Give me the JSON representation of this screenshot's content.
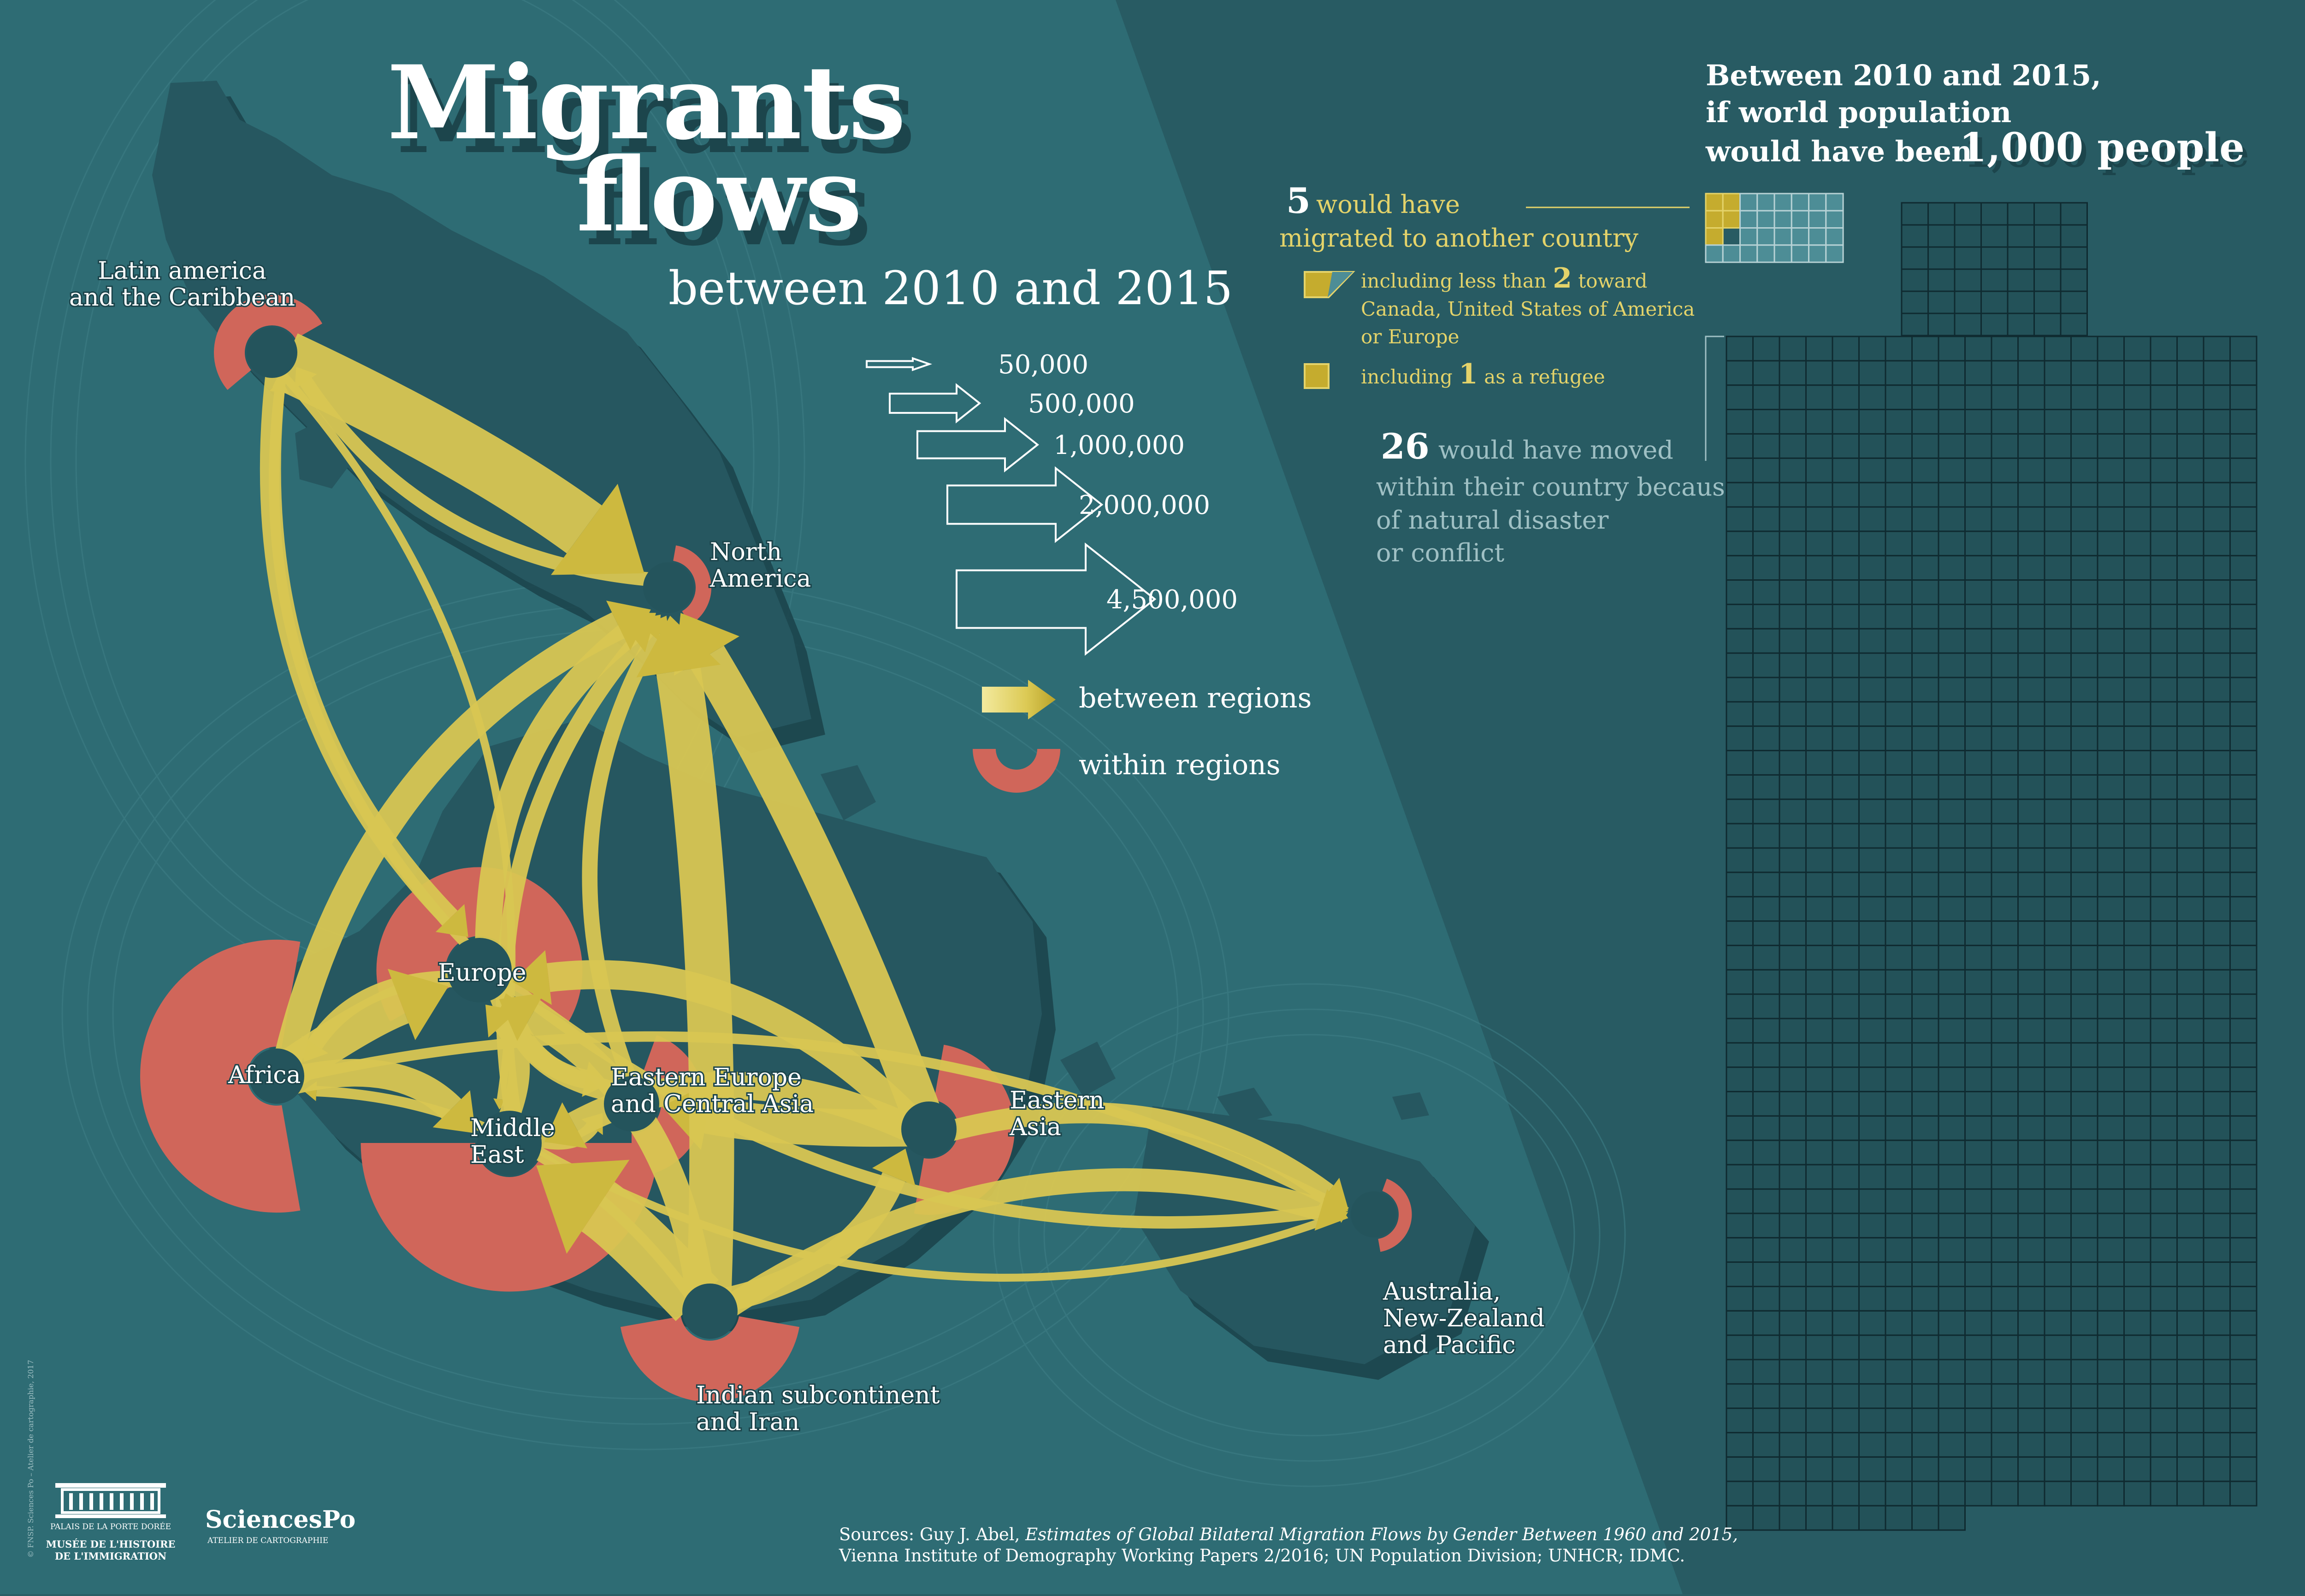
{
  "title": {
    "line1": "Migrants",
    "line2": "flows",
    "subtitle": "between 2010 and 2015"
  },
  "colors": {
    "sea": "#2e6c74",
    "land": "#265760",
    "panel": "#285b63",
    "arrow": "#d8c652",
    "within": "#d0665a",
    "grid_line": "#0f2a30",
    "grid_fill": "#235259",
    "highlight_fill": "#c5ac2e",
    "light_fill": "#4d8d96"
  },
  "regions": [
    {
      "id": "latin",
      "label_lines": [
        "Latin america",
        "and the Caribbean"
      ],
      "within": 1
    },
    {
      "id": "na",
      "label_lines": [
        "North",
        "America"
      ],
      "within": 0.4
    },
    {
      "id": "europe",
      "label_lines": [
        "Europe"
      ],
      "within": 2.5
    },
    {
      "id": "africa",
      "label_lines": [
        "Africa"
      ],
      "within": 4.0
    },
    {
      "id": "me",
      "label_lines": [
        "Middle",
        "East"
      ],
      "within": 4.3
    },
    {
      "id": "eeca",
      "label_lines": [
        "Eastern Europe",
        "and Central Asia"
      ],
      "within": 1.5
    },
    {
      "id": "ea",
      "label_lines": [
        "Eastern",
        "Asia"
      ],
      "within": 2.0
    },
    {
      "id": "india",
      "label_lines": [
        "Indian subcontinent",
        "and Iran"
      ],
      "within": 2.2
    },
    {
      "id": "aus",
      "label_lines": [
        "Australia,",
        "New-Zealand",
        "and Pacific"
      ],
      "within": 0.3
    }
  ],
  "flows": [
    {
      "from": "latin",
      "to": "na",
      "value": 4500000
    },
    {
      "from": "india",
      "to": "me",
      "value": 4500000
    },
    {
      "from": "india",
      "to": "na",
      "value": 2500000
    },
    {
      "from": "ea",
      "to": "na",
      "value": 2000000
    },
    {
      "from": "africa",
      "to": "europe",
      "value": 2000000
    },
    {
      "from": "ea",
      "to": "eeca",
      "value": 1700000
    },
    {
      "from": "india",
      "to": "europe",
      "value": 1000000
    },
    {
      "from": "africa",
      "to": "na",
      "value": 1000000
    },
    {
      "from": "ea",
      "to": "europe",
      "value": 1000000
    },
    {
      "from": "ea",
      "to": "me",
      "value": 900000
    },
    {
      "from": "africa",
      "to": "me",
      "value": 900000
    },
    {
      "from": "europe",
      "to": "na",
      "value": 800000
    },
    {
      "from": "india",
      "to": "ea",
      "value": 700000
    },
    {
      "from": "india",
      "to": "aus",
      "value": 600000
    },
    {
      "from": "ea",
      "to": "aus",
      "value": 500000
    },
    {
      "from": "latin",
      "to": "europe",
      "value": 500000
    },
    {
      "from": "eeca",
      "to": "europe",
      "value": 500000
    },
    {
      "from": "me",
      "to": "europe",
      "value": 500000
    },
    {
      "from": "europe",
      "to": "eeca",
      "value": 400000
    },
    {
      "from": "europe",
      "to": "africa",
      "value": 300000
    },
    {
      "from": "me",
      "to": "na",
      "value": 300000
    },
    {
      "from": "eeca",
      "to": "na",
      "value": 250000
    },
    {
      "from": "europe",
      "to": "aus",
      "value": 150000
    },
    {
      "from": "na",
      "to": "latin",
      "value": 200000
    },
    {
      "from": "africa",
      "to": "aus",
      "value": 100000
    },
    {
      "from": "me",
      "to": "eeca",
      "value": 200000
    },
    {
      "from": "india",
      "to": "africa",
      "value": 100000
    },
    {
      "from": "europe",
      "to": "latin",
      "value": 100000
    },
    {
      "from": "latin",
      "to": "me",
      "value": 50000
    },
    {
      "from": "me",
      "to": "aus",
      "value": 50000
    }
  ],
  "legend": {
    "scale": [
      {
        "value": 50000,
        "label": "50,000"
      },
      {
        "value": 500000,
        "label": "500,000"
      },
      {
        "value": 1000000,
        "label": "1,000,000"
      },
      {
        "value": 2000000,
        "label": "2,000,000"
      },
      {
        "value": 4500000,
        "label": "4,500,000"
      }
    ],
    "between_label": "between regions",
    "within_label": "within regions"
  },
  "population": {
    "heading_line1": "Between 2010 and 2015,",
    "heading_line2": "if world population",
    "heading_line3": "would have been",
    "total": "1,000 people",
    "total_count": 1000,
    "migrated_count": "5",
    "migrated_line1": "would have",
    "migrated_line2": "migrated to another country",
    "toward_prefix": "including less than",
    "toward_count": "2",
    "toward_suffix": "toward",
    "toward_line2": "Canada, United States of America",
    "toward_line3": "or Europe",
    "refugee_prefix": "including",
    "refugee_count": "1",
    "refugee_suffix": "as a refugee",
    "moved_count": "26",
    "moved_line1": "would have moved",
    "moved_line2": "within their country because",
    "moved_line3": "of natural disaster",
    "moved_line4": "or conflict",
    "migrated_squares": 5,
    "displaced_squares": 26
  },
  "sources": {
    "prefix": "Sources: Guy J. Abel,",
    "italic": "Estimates of Global Bilateral Migration Flows by Gender Between 1960 and 2015,",
    "line2": "Vienna Institute of Demography Working Papers 2/2016; UN Population Division; UNHCR; IDMC."
  },
  "logos": {
    "museum_line1": "PALAIS DE LA PORTE DORÉE",
    "museum_line2": "MUSÉE DE L'HISTOIRE",
    "museum_line3": "DE L'IMMIGRATION",
    "sciencespo": "SciencesPo",
    "sciencespo_sub": "ATELIER DE CARTOGRAPHIE",
    "credit": "© FNSP. Sciences Po – Atelier de cartographie, 2017"
  }
}
